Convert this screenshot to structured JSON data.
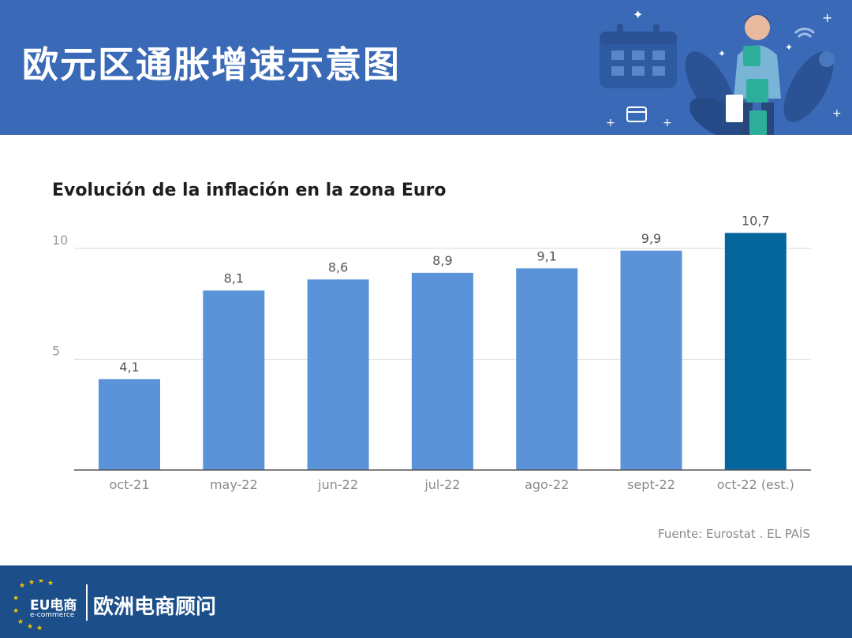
{
  "header": {
    "title": "欧元区通胀增速示意图"
  },
  "chart_data": {
    "type": "bar",
    "title": "Evolución de la inflación en la zona Euro",
    "xlabel": "",
    "ylabel": "",
    "categories": [
      "oct-21",
      "may-22",
      "jun-22",
      "jul-22",
      "ago-22",
      "sept-22",
      "oct-22 (est.)"
    ],
    "values": [
      4.1,
      8.1,
      8.6,
      8.9,
      9.1,
      9.9,
      10.7
    ],
    "value_labels": [
      "4,1",
      "8,1",
      "8,6",
      "8,9",
      "9,1",
      "9,9",
      "10,7"
    ],
    "y_ticks": [
      5,
      10
    ],
    "y_tick_labels": [
      "5",
      "10"
    ],
    "ylim": [
      0,
      10.5
    ],
    "grid": true,
    "colors": {
      "default": "#5b93d9",
      "highlight": "#05669e"
    },
    "highlight_index": 6
  },
  "source": "Fuente: Eurostat . EL PAÍS",
  "footer": {
    "logo_main": "EU电商",
    "logo_sub": "e-commerce",
    "brand": "欧洲电商顾问"
  },
  "colors": {
    "header_bg": "#3a6ab7",
    "footer_bg": "#1c4f8a"
  }
}
